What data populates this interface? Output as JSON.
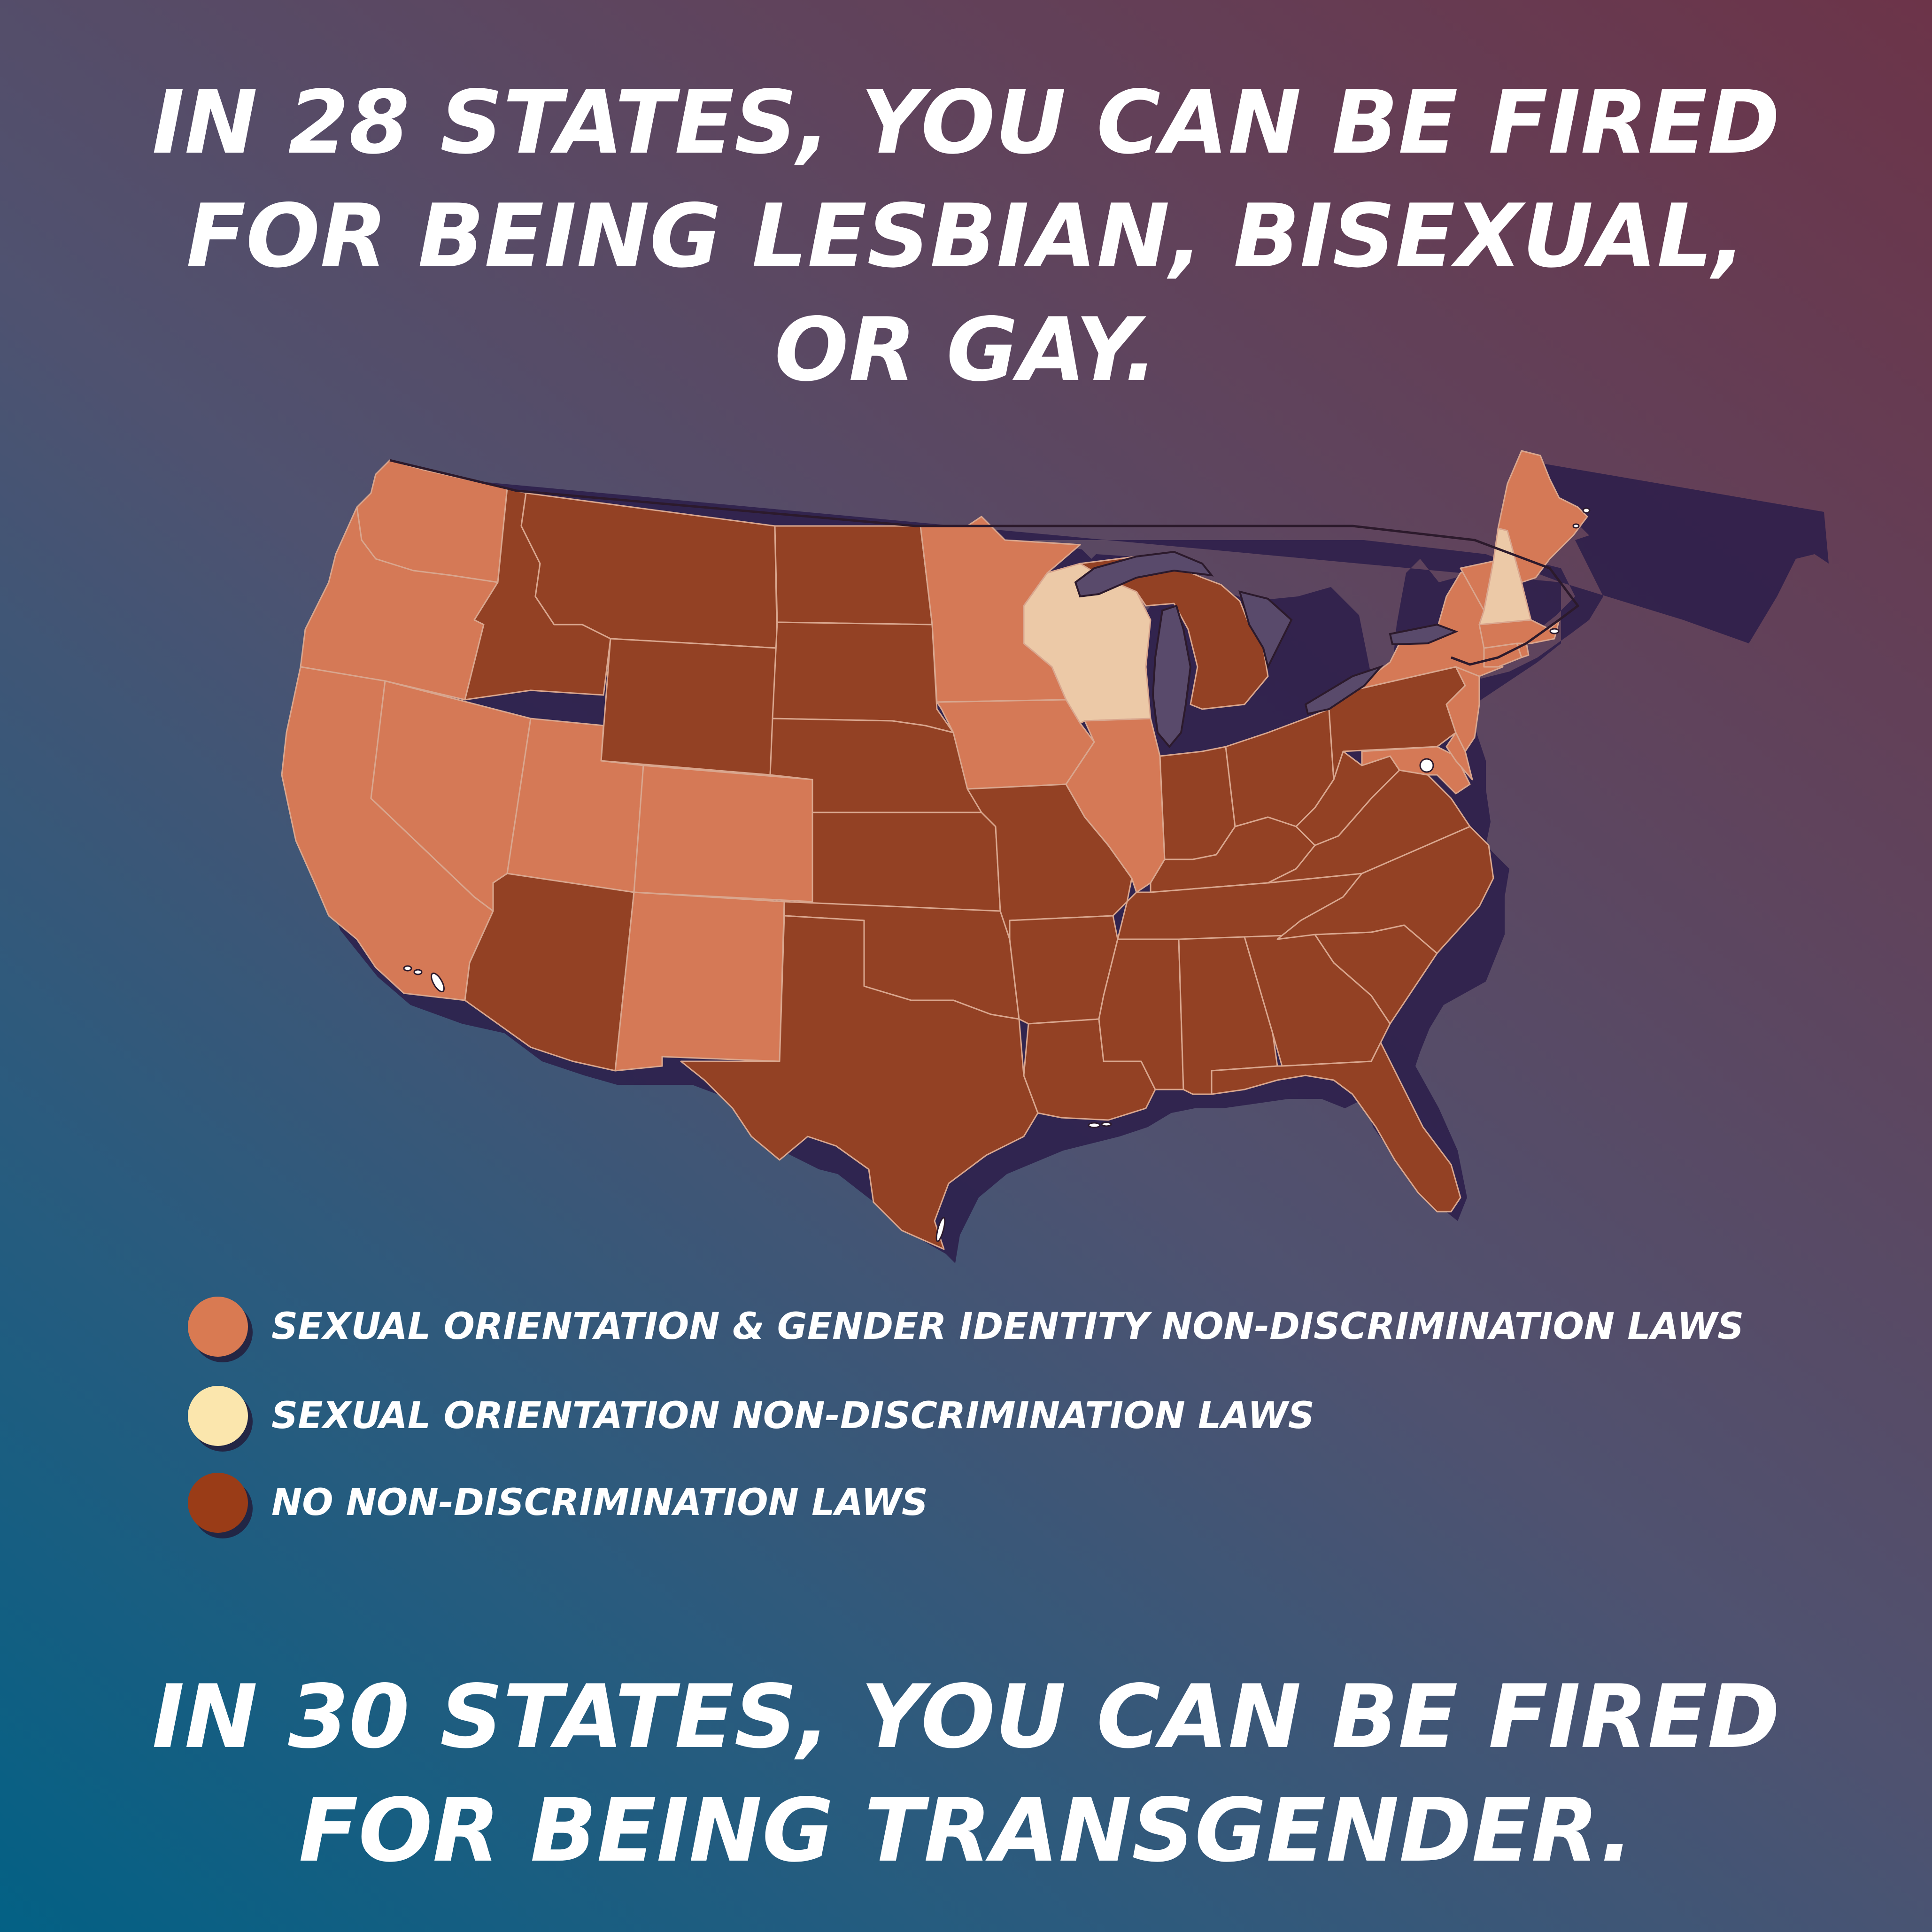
{
  "headline_top": {
    "line1": "IN 28 STATES, YOU CAN BE FIRED",
    "line2": "FOR BEING LESBIAN, BISEXUAL,",
    "line3": "OR GAY."
  },
  "headline_bottom": {
    "line1": "IN 30 STATES, YOU CAN BE FIRED",
    "line2": "FOR BEING TRANSGENDER."
  },
  "legend": [
    {
      "label": "SEXUAL ORIENTATION & GENDER IDENTITY NON-DISCRIMINATION LAWS",
      "color": "#d97a52"
    },
    {
      "label": "SEXUAL ORIENTATION NON-DISCRIMINATION LAWS",
      "color": "#fbe6ad"
    },
    {
      "label": "NO NON-DISCRIMINATION LAWS",
      "color": "#9a3c17"
    }
  ],
  "map": {
    "region": "Contiguous United States",
    "colors": {
      "sogi": "#d57956",
      "so_only": "#ecc9a7",
      "none": "#934124",
      "border": "#d9a68e",
      "outline": "#2c1a2c",
      "shadow": "#2b1d4a"
    },
    "states_by_category": {
      "sogi": [
        "WA",
        "OR",
        "CA",
        "NV",
        "UT",
        "CO",
        "NM",
        "MN",
        "IA",
        "IL",
        "NY",
        "VT",
        "ME",
        "MA",
        "RI",
        "CT",
        "NJ",
        "DE",
        "MD"
      ],
      "so_only": [
        "WI",
        "NH"
      ],
      "none": [
        "ID",
        "MT",
        "WY",
        "ND",
        "SD",
        "NE",
        "KS",
        "OK",
        "TX",
        "AZ",
        "MO",
        "AR",
        "LA",
        "MS",
        "AL",
        "GA",
        "FL",
        "SC",
        "NC",
        "TN",
        "KY",
        "IN",
        "MI",
        "OH",
        "WV",
        "VA",
        "PA"
      ]
    }
  }
}
